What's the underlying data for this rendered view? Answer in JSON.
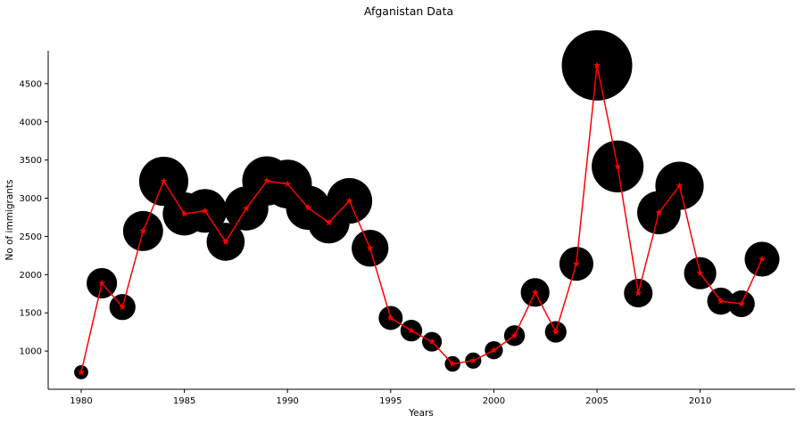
{
  "chart_data": {
    "type": "scatter",
    "title": "Afganistan Data",
    "xlabel": "Years",
    "ylabel": "No of immigrants",
    "xlim": [
      1978.4,
      2014.6
    ],
    "ylim": [
      500,
      4930
    ],
    "xticks": [
      1980,
      1985,
      1990,
      1995,
      2000,
      2005,
      2010
    ],
    "yticks": [
      1000,
      1500,
      2000,
      2500,
      3000,
      3500,
      4000,
      4500
    ],
    "grid": false,
    "spines": [
      "left",
      "bottom"
    ],
    "x": [
      1980,
      1981,
      1982,
      1983,
      1984,
      1985,
      1986,
      1987,
      1988,
      1989,
      1990,
      1991,
      1992,
      1993,
      1994,
      1995,
      1996,
      1997,
      1998,
      1999,
      2000,
      2001,
      2002,
      2003,
      2004,
      2005,
      2006,
      2007,
      2008,
      2009,
      2010,
      2011,
      2012,
      2013
    ],
    "y": [
      723,
      1888,
      1576,
      2571,
      3222,
      2795,
      2835,
      2430,
      2866,
      3227,
      3186,
      2876,
      2681,
      2966,
      2346,
      1433,
      1268,
      1122,
      832,
      875,
      1011,
      1202,
      1767,
      1251,
      2142,
      4739,
      3416,
      1758,
      2812,
      3163,
      2019,
      1653,
      1619,
      2203
    ],
    "series": [
      {
        "kind": "bubble",
        "color": "#000000",
        "size_by": "y"
      },
      {
        "kind": "line",
        "color": "#ff0000",
        "marker": "star"
      }
    ]
  }
}
